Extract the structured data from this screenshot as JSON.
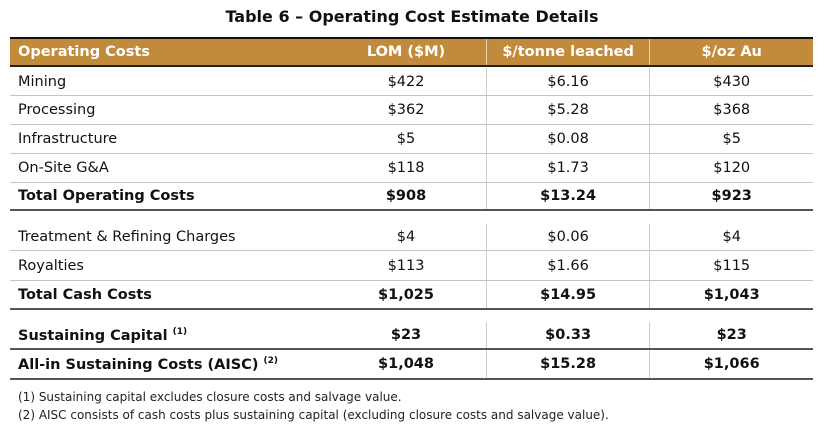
{
  "title": "Table 6 – Operating Cost Estimate Details",
  "header": [
    "Operating Costs",
    "LOM ($M)",
    "$/tonne leached",
    "$/oz Au"
  ],
  "rows": [
    {
      "label": "Mining",
      "lom": "$422",
      "tonne": "$6.16",
      "oz": "$430"
    },
    {
      "label": "Processing",
      "lom": "$362",
      "tonne": "$5.28",
      "oz": "$368"
    },
    {
      "label": "Infrastructure",
      "lom": "$5",
      "tonne": "$0.08",
      "oz": "$5"
    },
    {
      "label": "On-Site G&A",
      "lom": "$118",
      "tonne": "$1.73",
      "oz": "$120"
    },
    {
      "label": "Total Operating Costs",
      "lom": "$908",
      "tonne": "$13.24",
      "oz": "$923"
    },
    {
      "label": "Treatment & Refining Charges",
      "lom": "$4",
      "tonne": "$0.06",
      "oz": "$4"
    },
    {
      "label": "Royalties",
      "lom": "$113",
      "tonne": "$1.66",
      "oz": "$115"
    },
    {
      "label": "Total Cash Costs",
      "lom": "$1,025",
      "tonne": "$14.95",
      "oz": "$1,043"
    },
    {
      "label": "Sustaining Capital",
      "sup": "(1)",
      "lom": "$23",
      "tonne": "$0.33",
      "oz": "$23"
    },
    {
      "label": "All-in Sustaining Costs (AISC)",
      "sup": "(2)",
      "lom": "$1,048",
      "tonne": "$15.28",
      "oz": "$1,066"
    }
  ],
  "footnotes": [
    "(1)  Sustaining capital excludes closure costs and salvage value.",
    "(2)  AISC consists of cash costs plus sustaining capital (excluding closure costs and salvage value)."
  ]
}
